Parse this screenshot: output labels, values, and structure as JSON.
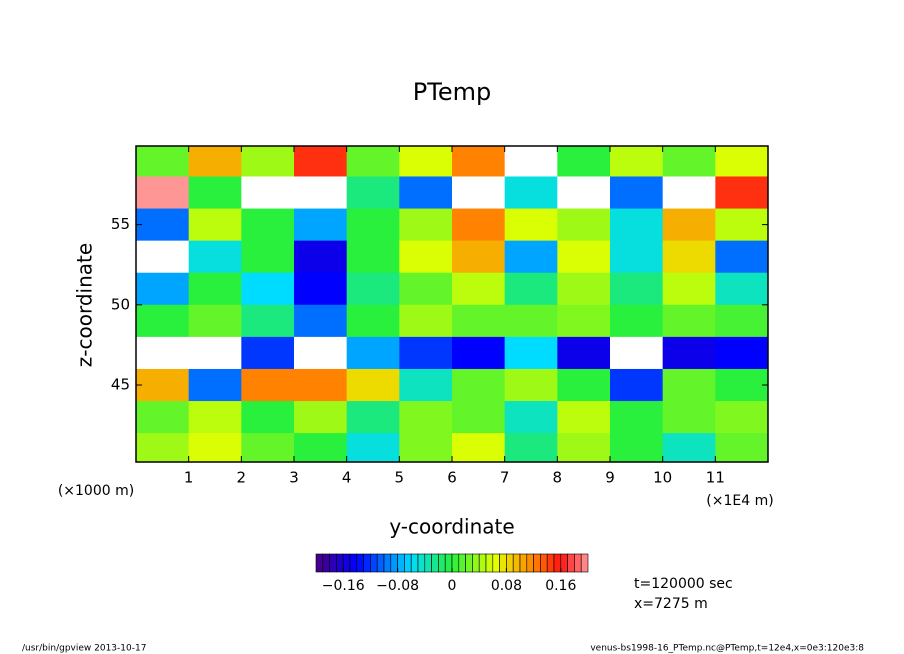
{
  "chart_data": {
    "type": "contour",
    "title": "PTemp",
    "x_label": "y-coordinate",
    "y_label": "z-coordinate",
    "x_unit": "(×1E4 m)",
    "y_unit": "(×1000 m)",
    "xlim": [
      0,
      12
    ],
    "xticks": [
      1,
      2,
      3,
      4,
      5,
      6,
      7,
      8,
      9,
      10,
      11
    ],
    "ylim": [
      40.2,
      59.9
    ],
    "yticks": [
      45,
      50,
      55
    ],
    "x": [
      0.5,
      1.5,
      2.5,
      3.5,
      4.5,
      5.5,
      6.5,
      7.5,
      8.5,
      9.5,
      10.5,
      11.5
    ],
    "z": [
      59,
      57,
      55,
      53,
      51,
      49,
      47,
      45,
      43,
      41
    ],
    "values": [
      [
        0.02,
        0.1,
        0.04,
        0.15,
        0.02,
        0.06,
        0.12,
        0.25,
        0.0,
        0.05,
        0.02,
        0.06
      ],
      [
        0.2,
        0.0,
        0.22,
        0.21,
        -0.02,
        -0.1,
        0.25,
        -0.05,
        0.25,
        -0.1,
        0.22,
        0.15
      ],
      [
        -0.1,
        0.05,
        0.0,
        -0.08,
        0.0,
        0.04,
        0.12,
        0.06,
        0.04,
        -0.05,
        0.1,
        0.05
      ],
      [
        0.21,
        -0.05,
        0.0,
        -0.15,
        0.0,
        0.06,
        0.1,
        -0.08,
        0.06,
        -0.05,
        0.08,
        -0.1
      ],
      [
        -0.08,
        0.0,
        -0.06,
        -0.14,
        -0.02,
        0.02,
        0.05,
        -0.02,
        0.04,
        -0.02,
        0.05,
        -0.04
      ],
      [
        0.0,
        0.02,
        -0.02,
        -0.1,
        0.0,
        0.04,
        0.02,
        0.02,
        0.03,
        0.0,
        0.02,
        0.01
      ],
      [
        0.22,
        0.22,
        -0.12,
        0.25,
        -0.08,
        -0.12,
        -0.14,
        -0.06,
        -0.15,
        0.22,
        -0.15,
        -0.14
      ],
      [
        0.1,
        -0.1,
        0.12,
        0.12,
        0.08,
        -0.04,
        0.02,
        0.04,
        0.0,
        -0.12,
        0.02,
        0.0
      ],
      [
        0.02,
        0.05,
        0.0,
        0.04,
        -0.02,
        0.03,
        0.02,
        -0.04,
        0.05,
        0.0,
        0.02,
        0.03
      ],
      [
        0.04,
        0.06,
        0.02,
        0.0,
        -0.05,
        0.03,
        0.06,
        -0.02,
        0.04,
        0.0,
        -0.04,
        0.02
      ]
    ],
    "colorbar": {
      "lim": [
        -0.2,
        0.2
      ],
      "ticks": [
        {
          "value": -0.16,
          "label": "−0.16"
        },
        {
          "value": -0.08,
          "label": "−0.08"
        },
        0,
        0.08,
        0.16
      ]
    },
    "annotations": [
      "t=120000 sec",
      "x=7275 m"
    ],
    "footer_left": "/usr/bin/gpview   2013-10-17",
    "footer_right": "venus-bs1998-16_PTemp.nc@PTemp,t=12e4,x=0e3:120e3:8"
  }
}
